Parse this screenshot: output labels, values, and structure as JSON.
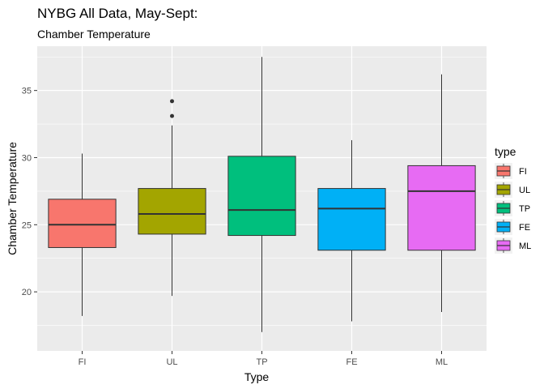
{
  "chart_data": {
    "type": "boxplot",
    "title": "NYBG All Data, May-Sept:",
    "subtitle": "Chamber Temperature",
    "xlabel": "Type",
    "ylabel": "Chamber Temperature",
    "ylim": [
      15.6,
      38.3
    ],
    "y_ticks": [
      20,
      25,
      30,
      35
    ],
    "grid": true,
    "legend": {
      "title": "type",
      "position": "right"
    },
    "categories": [
      "FI",
      "UL",
      "TP",
      "FE",
      "ML"
    ],
    "boxes": [
      {
        "name": "FI",
        "color": "#F8766D",
        "whisker_low": 18.2,
        "q1": 23.3,
        "median": 25.0,
        "q3": 26.9,
        "whisker_high": 30.3,
        "outliers": []
      },
      {
        "name": "UL",
        "color": "#A3A500",
        "whisker_low": 19.7,
        "q1": 24.3,
        "median": 25.8,
        "q3": 27.7,
        "whisker_high": 32.4,
        "outliers": [
          33.1,
          34.2
        ]
      },
      {
        "name": "TP",
        "color": "#00BF7D",
        "whisker_low": 17.0,
        "q1": 24.2,
        "median": 26.1,
        "q3": 30.1,
        "whisker_high": 37.5,
        "outliers": []
      },
      {
        "name": "FE",
        "color": "#00B0F6",
        "whisker_low": 17.8,
        "q1": 23.1,
        "median": 26.2,
        "q3": 27.7,
        "whisker_high": 31.3,
        "outliers": []
      },
      {
        "name": "ML",
        "color": "#E76BF3",
        "whisker_low": 18.5,
        "q1": 23.1,
        "median": 27.5,
        "q3": 29.4,
        "whisker_high": 36.2,
        "outliers": []
      }
    ]
  }
}
